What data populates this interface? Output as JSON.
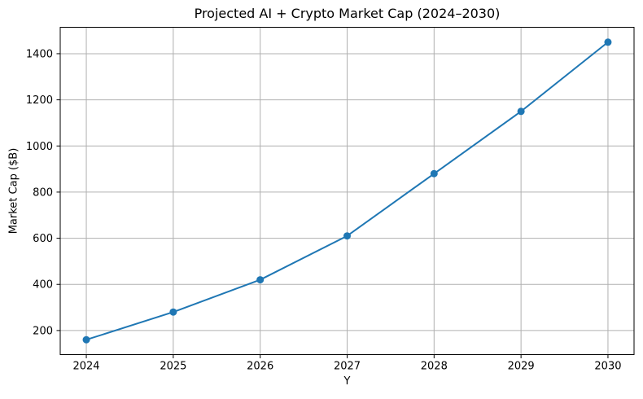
{
  "figure": {
    "title": "Projected AI + Crypto Market Cap (2024–2030)",
    "xlabel": "Y",
    "ylabel": "Market Cap ($B)"
  },
  "chart_data": {
    "type": "line",
    "title": "Projected AI + Crypto Market Cap (2024–2030)",
    "xlabel": "Y",
    "ylabel": "Market Cap ($B)",
    "x": [
      2024,
      2025,
      2026,
      2027,
      2028,
      2029,
      2030
    ],
    "values": [
      160,
      280,
      420,
      610,
      880,
      1150,
      1450
    ],
    "xticks": [
      "2024",
      "2025",
      "2026",
      "2027",
      "2028",
      "2029",
      "2030"
    ],
    "yticks": [
      "200",
      "400",
      "600",
      "800",
      "1000",
      "1200",
      "1400"
    ],
    "xtick_values": [
      2024,
      2025,
      2026,
      2027,
      2028,
      2029,
      2030
    ],
    "ytick_values": [
      200,
      400,
      600,
      800,
      1000,
      1200,
      1400
    ],
    "xlim": [
      2023.7,
      2030.3
    ],
    "ylim": [
      95.5,
      1514.5
    ],
    "grid": true,
    "legend": false,
    "line_color": "#1f77b4",
    "marker_color": "#1f77b4",
    "grid_color": "#b0b0b0",
    "spine_color": "#000000",
    "background_color": "#ffffff"
  }
}
